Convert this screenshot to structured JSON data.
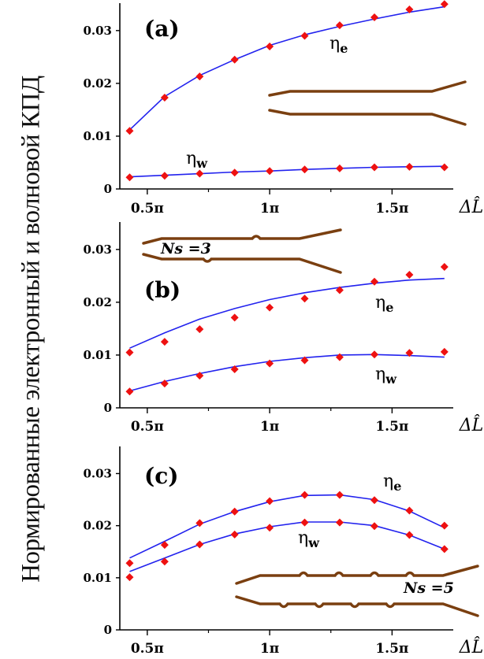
{
  "ylabel": "Нормированные электронный и волновой КПД",
  "chart_data": [
    {
      "type": "line",
      "panel_label": "(a)",
      "xlabel": "ΔL̂",
      "x_tick_labels": [
        "0.5π",
        "1π",
        "1.5π"
      ],
      "y_tick_labels": [
        "0",
        "0.01",
        "0.02",
        "0.03"
      ],
      "ylim": [
        0,
        0.034
      ],
      "xlim": [
        0.42,
        1.75
      ],
      "grid": false,
      "legend": "none",
      "series": [
        {
          "name": "ηe",
          "color": "#2222ee",
          "x": [
            0.428,
            0.571,
            0.714,
            0.857,
            1.0,
            1.143,
            1.286,
            1.428,
            1.571,
            1.714
          ],
          "curve": [
            0.0112,
            0.0175,
            0.0215,
            0.0245,
            0.0272,
            0.0292,
            0.0308,
            0.0322,
            0.0335,
            0.0345
          ],
          "points": [
            0.011,
            0.0173,
            0.0213,
            0.0245,
            0.027,
            0.029,
            0.031,
            0.0325,
            0.034,
            0.035
          ]
        },
        {
          "name": "ηw",
          "color": "#2222ee",
          "x": [
            0.428,
            0.571,
            0.714,
            0.857,
            1.0,
            1.143,
            1.286,
            1.428,
            1.571,
            1.714
          ],
          "curve": [
            0.0023,
            0.0026,
            0.0029,
            0.0032,
            0.0034,
            0.0037,
            0.0039,
            0.0041,
            0.0042,
            0.0043
          ],
          "points": [
            0.0022,
            0.0025,
            0.0029,
            0.0031,
            0.0034,
            0.0037,
            0.0039,
            0.0041,
            0.0042,
            0.0041
          ]
        }
      ],
      "inset": {
        "type": "tapered-waveguide"
      }
    },
    {
      "type": "line",
      "panel_label": "(b)",
      "xlabel": "ΔL̂",
      "x_tick_labels": [
        "0.5π",
        "1π",
        "1.5π"
      ],
      "y_tick_labels": [
        "0",
        "0.01",
        "0.02",
        "0.03"
      ],
      "ylim": [
        0,
        0.034
      ],
      "xlim": [
        0.42,
        1.75
      ],
      "grid": false,
      "legend": "none",
      "inset_label": "Ns =3",
      "series": [
        {
          "name": "ηe",
          "color": "#2222ee",
          "x": [
            0.428,
            0.571,
            0.714,
            0.857,
            1.0,
            1.143,
            1.286,
            1.428,
            1.571,
            1.714
          ],
          "curve": [
            0.0113,
            0.0142,
            0.0168,
            0.0188,
            0.0205,
            0.0218,
            0.0228,
            0.0236,
            0.0242,
            0.0245
          ],
          "points": [
            0.0105,
            0.0125,
            0.0149,
            0.0171,
            0.019,
            0.0207,
            0.0223,
            0.0239,
            0.0252,
            0.0267
          ]
        },
        {
          "name": "ηw",
          "color": "#2222ee",
          "x": [
            0.428,
            0.571,
            0.714,
            0.857,
            1.0,
            1.143,
            1.286,
            1.428,
            1.571,
            1.714
          ],
          "curve": [
            0.0032,
            0.005,
            0.0065,
            0.0078,
            0.0088,
            0.0095,
            0.01,
            0.0101,
            0.0099,
            0.0096
          ],
          "points": [
            0.0031,
            0.0046,
            0.0061,
            0.0073,
            0.0084,
            0.009,
            0.0096,
            0.0101,
            0.0104,
            0.0106
          ]
        }
      ],
      "inset": {
        "type": "corrugated-waveguide",
        "sections": 3
      }
    },
    {
      "type": "line",
      "panel_label": "(c)",
      "xlabel": "ΔL̂",
      "x_tick_labels": [
        "0.5π",
        "1π",
        "1.5π"
      ],
      "y_tick_labels": [
        "0",
        "0.01",
        "0.02",
        "0.03"
      ],
      "ylim": [
        0,
        0.034
      ],
      "xlim": [
        0.42,
        1.75
      ],
      "grid": false,
      "legend": "none",
      "inset_label": "Ns =5",
      "series": [
        {
          "name": "ηe",
          "color": "#2222ee",
          "x": [
            0.428,
            0.571,
            0.714,
            0.857,
            1.0,
            1.143,
            1.286,
            1.428,
            1.571,
            1.714
          ],
          "curve": [
            0.0138,
            0.017,
            0.0203,
            0.0227,
            0.0246,
            0.0258,
            0.0259,
            0.025,
            0.0228,
            0.0196
          ],
          "points": [
            0.0128,
            0.0163,
            0.0205,
            0.0227,
            0.0247,
            0.0259,
            0.0259,
            0.0249,
            0.0229,
            0.02
          ]
        },
        {
          "name": "ηw",
          "color": "#2222ee",
          "x": [
            0.428,
            0.571,
            0.714,
            0.857,
            1.0,
            1.143,
            1.286,
            1.428,
            1.571,
            1.714
          ],
          "curve": [
            0.0112,
            0.0138,
            0.0164,
            0.0184,
            0.0198,
            0.0207,
            0.0207,
            0.02,
            0.0182,
            0.0155
          ],
          "points": [
            0.0101,
            0.0131,
            0.0164,
            0.0183,
            0.0196,
            0.0206,
            0.0206,
            0.0199,
            0.0182,
            0.0155
          ]
        }
      ],
      "inset": {
        "type": "corrugated-waveguide",
        "sections": 5
      }
    }
  ]
}
